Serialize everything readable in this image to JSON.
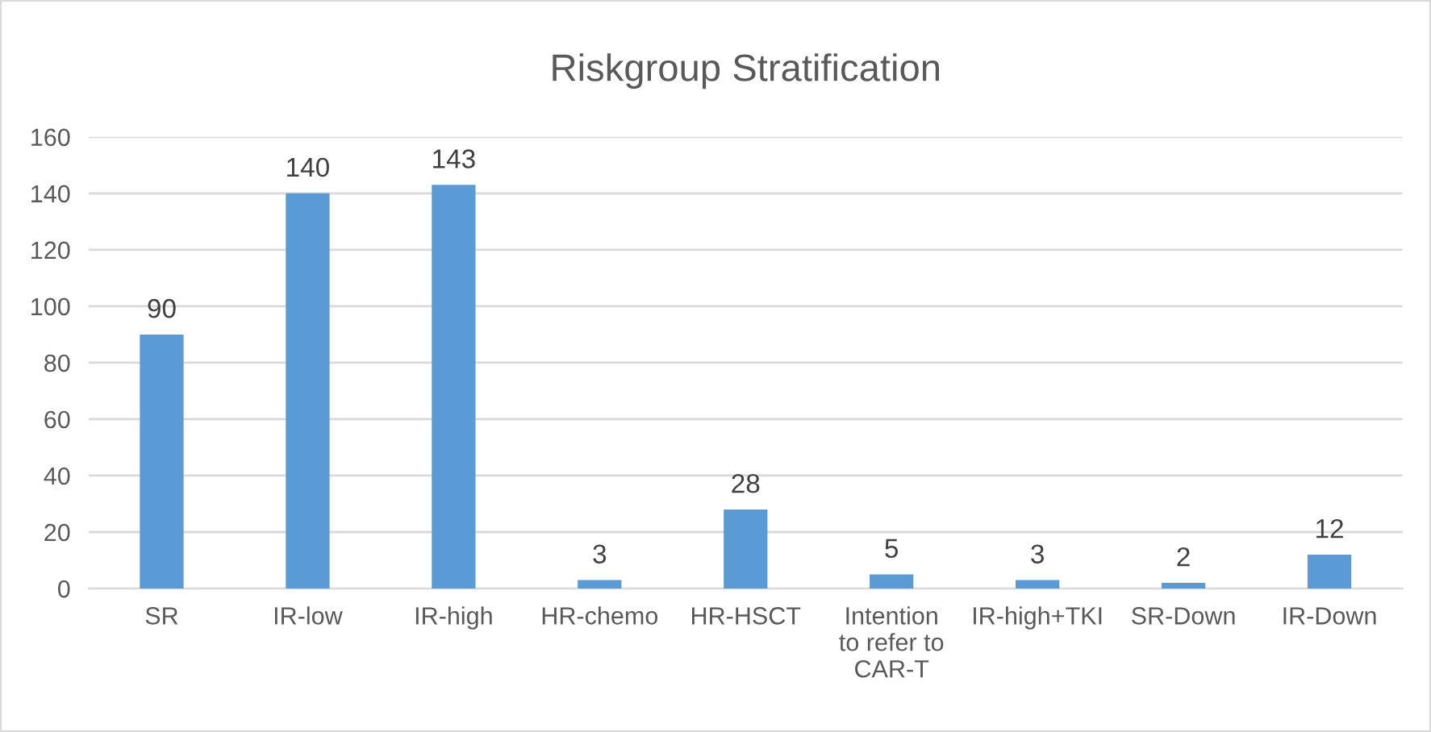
{
  "chart_data": {
    "type": "bar",
    "title": "Riskgroup Stratification",
    "categories": [
      "SR",
      "IR-low",
      "IR-high",
      "HR-chemo",
      "HR-HSCT",
      "Intention\nto refer to\nCAR-T",
      "IR-high+TKI",
      "SR-Down",
      "IR-Down"
    ],
    "values": [
      90,
      140,
      143,
      3,
      28,
      5,
      3,
      2,
      12
    ],
    "color": "#5b9bd5",
    "ylim": [
      0,
      160
    ],
    "yticks": [
      0,
      20,
      40,
      60,
      80,
      100,
      120,
      140,
      160
    ],
    "grid": "y",
    "data_labels": true
  }
}
